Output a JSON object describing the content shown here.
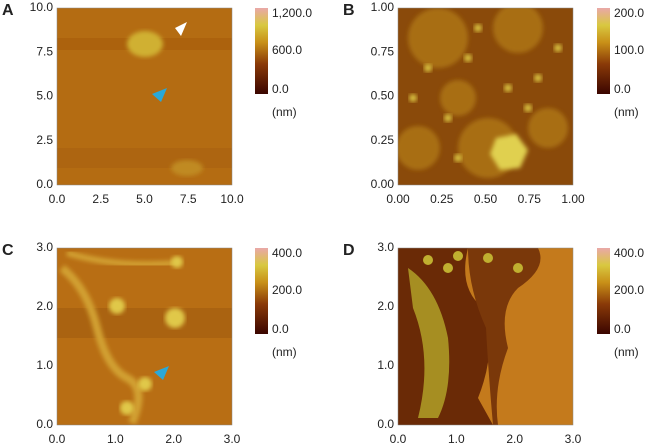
{
  "panels": [
    {
      "label": "A",
      "yticks": [
        "0.0",
        "2.5",
        "5.0",
        "7.5",
        "10.0"
      ],
      "xticks": [
        "0.0",
        "2.5",
        "5.0",
        "7.5",
        "10.0"
      ],
      "colorbar": [
        "0.0",
        "600.0",
        "1,200.0"
      ],
      "unit": "(nm)"
    },
    {
      "label": "B",
      "yticks": [
        "0.00",
        "0.25",
        "0.50",
        "0.75",
        "1.00"
      ],
      "xticks": [
        "0.00",
        "0.25",
        "0.50",
        "0.75",
        "1.00"
      ],
      "colorbar": [
        "0.0",
        "100.0",
        "200.0"
      ],
      "unit": "(nm)"
    },
    {
      "label": "C",
      "yticks": [
        "0.0",
        "1.0",
        "2.0",
        "3.0"
      ],
      "xticks": [
        "0.0",
        "1.0",
        "2.0",
        "3.0"
      ],
      "colorbar": [
        "0.0",
        "200.0",
        "400.0"
      ],
      "unit": "(nm)"
    },
    {
      "label": "D",
      "yticks": [
        "0.0",
        "1.0",
        "2.0",
        "3.0"
      ],
      "xticks": [
        "0.0",
        "1.0",
        "2.0",
        "3.0"
      ],
      "colorbar": [
        "0.0",
        "200.0",
        "400.0"
      ],
      "unit": "(nm)"
    }
  ]
}
